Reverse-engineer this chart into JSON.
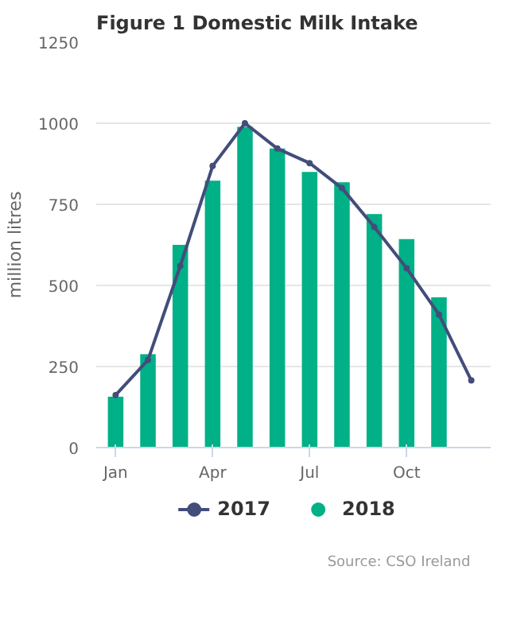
{
  "chart_data": {
    "type": "bar",
    "title": "Figure 1 Domestic Milk Intake",
    "ylabel": "million litres",
    "categories": [
      "Jan",
      null,
      null,
      "Apr",
      null,
      null,
      "Jul",
      null,
      null,
      "Oct",
      null,
      null
    ],
    "series": [
      {
        "name": "2017",
        "type": "line",
        "color": "#434d7a",
        "marker": "circle",
        "values": [
          162,
          270,
          560,
          868,
          1000,
          922,
          877,
          800,
          680,
          553,
          410,
          207
        ]
      },
      {
        "name": "2018",
        "color": "#00b087",
        "values": [
          157,
          288,
          625,
          823,
          989,
          922,
          850,
          818,
          720,
          643,
          463,
          null
        ]
      }
    ],
    "ylim": [
      0,
      1250
    ],
    "yticks": [
      0,
      250,
      500,
      750,
      1000,
      1250
    ],
    "grid": "y",
    "legend": "bottom",
    "annotations": [
      "Source: CSO Ireland"
    ]
  }
}
